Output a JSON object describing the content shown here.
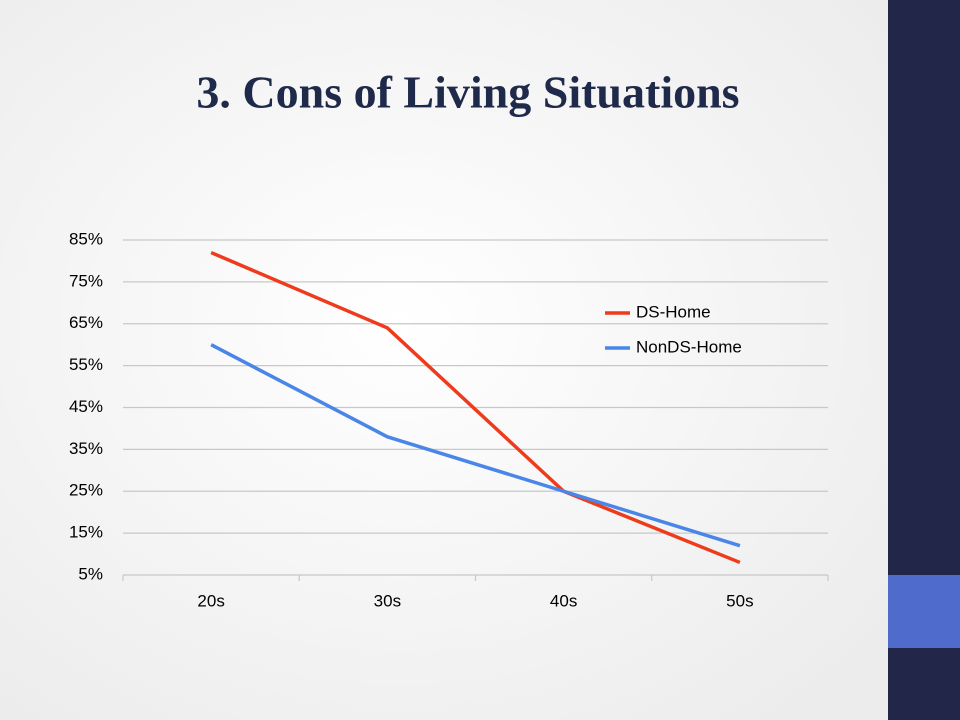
{
  "chart_data": {
    "type": "line",
    "title": "3. Cons of Living Situations",
    "categories": [
      "20s",
      "30s",
      "40s",
      "50s"
    ],
    "series": [
      {
        "name": "DS-Home",
        "color": "#ee3b1c",
        "values": [
          82,
          64,
          25,
          8
        ]
      },
      {
        "name": "NonDS-Home",
        "color": "#4a86e8",
        "values": [
          60,
          38,
          25,
          12
        ]
      }
    ],
    "ylim": [
      5,
      85
    ],
    "yticks": [
      {
        "value": 5,
        "label": "5%"
      },
      {
        "value": 15,
        "label": "15%"
      },
      {
        "value": 25,
        "label": "25%"
      },
      {
        "value": 35,
        "label": "35%"
      },
      {
        "value": 45,
        "label": "45%"
      },
      {
        "value": 55,
        "label": "55%"
      },
      {
        "value": 65,
        "label": "65%"
      },
      {
        "value": 75,
        "label": "75%"
      },
      {
        "value": 85,
        "label": "85%"
      }
    ],
    "grid": true,
    "legend": "top-right"
  }
}
